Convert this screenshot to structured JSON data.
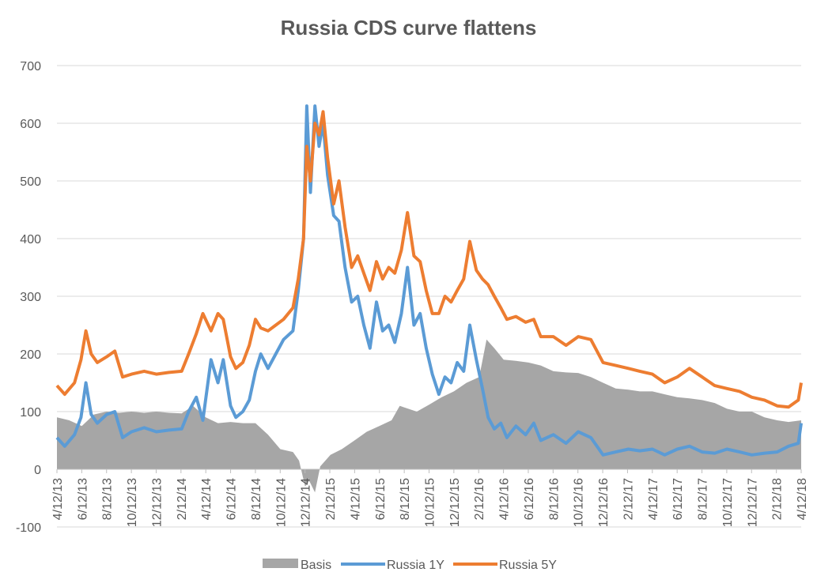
{
  "chart_data": {
    "type": "line",
    "title": "Russia CDS curve flattens",
    "xlabel": "",
    "ylabel": "",
    "ylim": [
      -100,
      700
    ],
    "y_ticks": [
      "700",
      "600",
      "500",
      "400",
      "300",
      "200",
      "100",
      "0",
      "-100"
    ],
    "x_ticks": [
      "4/12/13",
      "6/12/13",
      "8/12/13",
      "10/12/13",
      "12/12/13",
      "2/12/14",
      "4/12/14",
      "6/12/14",
      "8/12/14",
      "10/12/14",
      "12/12/14",
      "2/12/15",
      "4/12/15",
      "6/12/15",
      "8/12/15",
      "10/12/15",
      "12/12/15",
      "2/12/16",
      "4/12/16",
      "6/12/16",
      "8/12/16",
      "10/12/16",
      "12/12/16",
      "2/12/17",
      "4/12/17",
      "6/12/17",
      "8/12/17",
      "10/12/17",
      "12/12/17",
      "2/12/18",
      "4/12/18"
    ],
    "grid": "horizontal",
    "legend_position": "bottom",
    "x_range": [
      "2013-04-12",
      "2018-04-12"
    ],
    "colors": {
      "Basis": "#a6a6a6",
      "Russia 1Y": "#5b9bd5",
      "Russia 5Y": "#ed7d31"
    },
    "series": [
      {
        "name": "Basis",
        "kind": "area",
        "points": [
          [
            "2013-04-12",
            90
          ],
          [
            "2013-05-12",
            85
          ],
          [
            "2013-06-12",
            75
          ],
          [
            "2013-07-12",
            95
          ],
          [
            "2013-08-12",
            100
          ],
          [
            "2013-09-12",
            98
          ],
          [
            "2013-10-12",
            100
          ],
          [
            "2013-11-12",
            98
          ],
          [
            "2013-12-12",
            100
          ],
          [
            "2014-01-12",
            98
          ],
          [
            "2014-02-12",
            97
          ],
          [
            "2014-03-12",
            110
          ],
          [
            "2014-04-12",
            90
          ],
          [
            "2014-05-12",
            80
          ],
          [
            "2014-06-12",
            82
          ],
          [
            "2014-07-12",
            80
          ],
          [
            "2014-08-12",
            80
          ],
          [
            "2014-09-12",
            60
          ],
          [
            "2014-10-12",
            35
          ],
          [
            "2014-11-12",
            30
          ],
          [
            "2014-11-27",
            15
          ],
          [
            "2014-12-12",
            -30
          ],
          [
            "2014-12-22",
            -20
          ],
          [
            "2015-01-05",
            -40
          ],
          [
            "2015-01-18",
            5
          ],
          [
            "2015-02-12",
            25
          ],
          [
            "2015-03-12",
            35
          ],
          [
            "2015-04-12",
            50
          ],
          [
            "2015-05-12",
            65
          ],
          [
            "2015-06-12",
            75
          ],
          [
            "2015-07-12",
            85
          ],
          [
            "2015-08-01",
            110
          ],
          [
            "2015-09-12",
            100
          ],
          [
            "2015-10-12",
            112
          ],
          [
            "2015-11-12",
            125
          ],
          [
            "2015-12-12",
            135
          ],
          [
            "2016-01-12",
            150
          ],
          [
            "2016-02-12",
            160
          ],
          [
            "2016-03-01",
            225
          ],
          [
            "2016-03-20",
            210
          ],
          [
            "2016-04-12",
            190
          ],
          [
            "2016-05-12",
            188
          ],
          [
            "2016-06-12",
            185
          ],
          [
            "2016-07-12",
            180
          ],
          [
            "2016-08-12",
            170
          ],
          [
            "2016-09-12",
            168
          ],
          [
            "2016-10-12",
            167
          ],
          [
            "2016-11-12",
            160
          ],
          [
            "2016-12-12",
            150
          ],
          [
            "2017-01-12",
            140
          ],
          [
            "2017-02-12",
            138
          ],
          [
            "2017-03-12",
            135
          ],
          [
            "2017-04-12",
            135
          ],
          [
            "2017-05-12",
            130
          ],
          [
            "2017-06-12",
            125
          ],
          [
            "2017-07-12",
            123
          ],
          [
            "2017-08-12",
            120
          ],
          [
            "2017-09-12",
            115
          ],
          [
            "2017-10-12",
            105
          ],
          [
            "2017-11-12",
            100
          ],
          [
            "2017-12-12",
            100
          ],
          [
            "2018-01-12",
            90
          ],
          [
            "2018-02-12",
            85
          ],
          [
            "2018-03-12",
            82
          ],
          [
            "2018-04-12",
            85
          ]
        ]
      },
      {
        "name": "Russia 1Y",
        "kind": "line",
        "points": [
          [
            "2013-04-12",
            55
          ],
          [
            "2013-05-01",
            40
          ],
          [
            "2013-05-25",
            60
          ],
          [
            "2013-06-10",
            90
          ],
          [
            "2013-06-22",
            150
          ],
          [
            "2013-07-05",
            95
          ],
          [
            "2013-07-20",
            80
          ],
          [
            "2013-08-12",
            95
          ],
          [
            "2013-09-01",
            100
          ],
          [
            "2013-09-20",
            55
          ],
          [
            "2013-10-12",
            65
          ],
          [
            "2013-11-12",
            72
          ],
          [
            "2013-12-12",
            65
          ],
          [
            "2014-01-12",
            68
          ],
          [
            "2014-02-12",
            70
          ],
          [
            "2014-03-01",
            100
          ],
          [
            "2014-03-20",
            125
          ],
          [
            "2014-04-05",
            85
          ],
          [
            "2014-04-25",
            190
          ],
          [
            "2014-05-12",
            150
          ],
          [
            "2014-05-25",
            190
          ],
          [
            "2014-06-12",
            110
          ],
          [
            "2014-06-25",
            90
          ],
          [
            "2014-07-12",
            100
          ],
          [
            "2014-07-28",
            120
          ],
          [
            "2014-08-12",
            170
          ],
          [
            "2014-08-25",
            200
          ],
          [
            "2014-09-12",
            175
          ],
          [
            "2014-10-01",
            200
          ],
          [
            "2014-10-20",
            225
          ],
          [
            "2014-11-12",
            240
          ],
          [
            "2014-11-25",
            310
          ],
          [
            "2014-12-08",
            400
          ],
          [
            "2014-12-16",
            630
          ],
          [
            "2014-12-25",
            480
          ],
          [
            "2015-01-05",
            630
          ],
          [
            "2015-01-15",
            560
          ],
          [
            "2015-01-25",
            600
          ],
          [
            "2015-02-05",
            510
          ],
          [
            "2015-02-20",
            440
          ],
          [
            "2015-03-05",
            430
          ],
          [
            "2015-03-20",
            350
          ],
          [
            "2015-04-05",
            290
          ],
          [
            "2015-04-20",
            300
          ],
          [
            "2015-05-05",
            250
          ],
          [
            "2015-05-20",
            210
          ],
          [
            "2015-06-05",
            290
          ],
          [
            "2015-06-20",
            240
          ],
          [
            "2015-07-05",
            250
          ],
          [
            "2015-07-20",
            220
          ],
          [
            "2015-08-05",
            270
          ],
          [
            "2015-08-20",
            350
          ],
          [
            "2015-09-05",
            250
          ],
          [
            "2015-09-20",
            270
          ],
          [
            "2015-10-05",
            210
          ],
          [
            "2015-10-20",
            165
          ],
          [
            "2015-11-05",
            130
          ],
          [
            "2015-11-20",
            160
          ],
          [
            "2015-12-05",
            150
          ],
          [
            "2015-12-20",
            185
          ],
          [
            "2016-01-05",
            170
          ],
          [
            "2016-01-20",
            250
          ],
          [
            "2016-02-05",
            190
          ],
          [
            "2016-02-20",
            140
          ],
          [
            "2016-03-05",
            90
          ],
          [
            "2016-03-20",
            70
          ],
          [
            "2016-04-05",
            80
          ],
          [
            "2016-04-20",
            55
          ],
          [
            "2016-05-12",
            75
          ],
          [
            "2016-06-05",
            60
          ],
          [
            "2016-06-25",
            80
          ],
          [
            "2016-07-12",
            50
          ],
          [
            "2016-08-12",
            60
          ],
          [
            "2016-09-12",
            45
          ],
          [
            "2016-10-12",
            65
          ],
          [
            "2016-11-12",
            55
          ],
          [
            "2016-12-12",
            25
          ],
          [
            "2017-01-12",
            30
          ],
          [
            "2017-02-12",
            35
          ],
          [
            "2017-03-12",
            32
          ],
          [
            "2017-04-12",
            35
          ],
          [
            "2017-05-12",
            25
          ],
          [
            "2017-06-12",
            35
          ],
          [
            "2017-07-12",
            40
          ],
          [
            "2017-08-12",
            30
          ],
          [
            "2017-09-12",
            28
          ],
          [
            "2017-10-12",
            35
          ],
          [
            "2017-11-12",
            30
          ],
          [
            "2017-12-12",
            25
          ],
          [
            "2018-01-12",
            28
          ],
          [
            "2018-02-12",
            30
          ],
          [
            "2018-03-12",
            40
          ],
          [
            "2018-04-05",
            45
          ],
          [
            "2018-04-12",
            80
          ]
        ]
      },
      {
        "name": "Russia 5Y",
        "kind": "line",
        "points": [
          [
            "2013-04-12",
            145
          ],
          [
            "2013-05-01",
            130
          ],
          [
            "2013-05-25",
            150
          ],
          [
            "2013-06-10",
            190
          ],
          [
            "2013-06-22",
            240
          ],
          [
            "2013-07-05",
            200
          ],
          [
            "2013-07-20",
            185
          ],
          [
            "2013-08-12",
            195
          ],
          [
            "2013-09-01",
            205
          ],
          [
            "2013-09-20",
            160
          ],
          [
            "2013-10-12",
            165
          ],
          [
            "2013-11-12",
            170
          ],
          [
            "2013-12-12",
            165
          ],
          [
            "2014-01-12",
            168
          ],
          [
            "2014-02-12",
            170
          ],
          [
            "2014-03-01",
            200
          ],
          [
            "2014-03-20",
            235
          ],
          [
            "2014-04-05",
            270
          ],
          [
            "2014-04-25",
            240
          ],
          [
            "2014-05-12",
            270
          ],
          [
            "2014-05-25",
            260
          ],
          [
            "2014-06-12",
            195
          ],
          [
            "2014-06-25",
            175
          ],
          [
            "2014-07-12",
            185
          ],
          [
            "2014-07-28",
            215
          ],
          [
            "2014-08-12",
            260
          ],
          [
            "2014-08-25",
            245
          ],
          [
            "2014-09-12",
            240
          ],
          [
            "2014-10-01",
            250
          ],
          [
            "2014-10-20",
            260
          ],
          [
            "2014-11-12",
            280
          ],
          [
            "2014-11-25",
            330
          ],
          [
            "2014-12-08",
            400
          ],
          [
            "2014-12-16",
            560
          ],
          [
            "2014-12-25",
            500
          ],
          [
            "2015-01-05",
            600
          ],
          [
            "2015-01-15",
            580
          ],
          [
            "2015-01-25",
            620
          ],
          [
            "2015-02-05",
            540
          ],
          [
            "2015-02-20",
            460
          ],
          [
            "2015-03-05",
            500
          ],
          [
            "2015-03-20",
            420
          ],
          [
            "2015-04-05",
            350
          ],
          [
            "2015-04-20",
            370
          ],
          [
            "2015-05-05",
            340
          ],
          [
            "2015-05-20",
            310
          ],
          [
            "2015-06-05",
            360
          ],
          [
            "2015-06-20",
            330
          ],
          [
            "2015-07-05",
            350
          ],
          [
            "2015-07-20",
            340
          ],
          [
            "2015-08-05",
            380
          ],
          [
            "2015-08-20",
            445
          ],
          [
            "2015-09-05",
            370
          ],
          [
            "2015-09-20",
            360
          ],
          [
            "2015-10-05",
            310
          ],
          [
            "2015-10-20",
            270
          ],
          [
            "2015-11-05",
            270
          ],
          [
            "2015-11-20",
            300
          ],
          [
            "2015-12-05",
            290
          ],
          [
            "2015-12-20",
            310
          ],
          [
            "2016-01-05",
            330
          ],
          [
            "2016-01-20",
            395
          ],
          [
            "2016-02-05",
            345
          ],
          [
            "2016-02-20",
            330
          ],
          [
            "2016-03-05",
            320
          ],
          [
            "2016-03-20",
            300
          ],
          [
            "2016-04-05",
            280
          ],
          [
            "2016-04-20",
            260
          ],
          [
            "2016-05-12",
            265
          ],
          [
            "2016-06-05",
            255
          ],
          [
            "2016-06-25",
            260
          ],
          [
            "2016-07-12",
            230
          ],
          [
            "2016-08-12",
            230
          ],
          [
            "2016-09-12",
            215
          ],
          [
            "2016-10-12",
            230
          ],
          [
            "2016-11-12",
            225
          ],
          [
            "2016-12-12",
            185
          ],
          [
            "2017-01-12",
            180
          ],
          [
            "2017-02-12",
            175
          ],
          [
            "2017-03-12",
            170
          ],
          [
            "2017-04-12",
            165
          ],
          [
            "2017-05-12",
            150
          ],
          [
            "2017-06-12",
            160
          ],
          [
            "2017-07-12",
            175
          ],
          [
            "2017-08-12",
            160
          ],
          [
            "2017-09-12",
            145
          ],
          [
            "2017-10-12",
            140
          ],
          [
            "2017-11-12",
            135
          ],
          [
            "2017-12-12",
            125
          ],
          [
            "2018-01-12",
            120
          ],
          [
            "2018-02-12",
            110
          ],
          [
            "2018-03-12",
            108
          ],
          [
            "2018-04-05",
            120
          ],
          [
            "2018-04-12",
            150
          ]
        ]
      }
    ]
  }
}
